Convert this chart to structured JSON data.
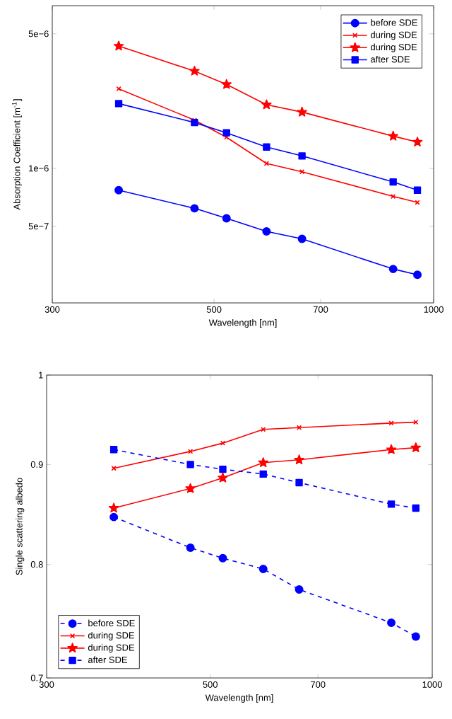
{
  "chart_data": [
    {
      "type": "line",
      "xlabel": "Wavelength [nm]",
      "ylabel": "Absorption Coefficient [m$^{-1}$]",
      "log": "xy",
      "legend": "top right",
      "x": [
        370,
        470,
        520,
        590,
        660,
        880,
        950
      ],
      "xlim": [
        300,
        1000
      ],
      "xticks": [
        300,
        500,
        700,
        1000
      ],
      "ylim": [
        2e-07,
        7e-06
      ],
      "yticks": [
        {
          "value": 5e-07,
          "label": "5e−7"
        },
        {
          "value": 1e-06,
          "label": "1e−6"
        },
        {
          "value": 5e-06,
          "label": "5e−6"
        }
      ],
      "series": [
        {
          "name": "before SDE",
          "color": "#0000ff",
          "marker": "circle",
          "line_style": "solid",
          "values": [
            7.7e-07,
            6.2e-07,
            5.5e-07,
            4.7e-07,
            4.3e-07,
            3e-07,
            2.8e-07
          ]
        },
        {
          "name": "during SDE",
          "color": "#ff0000",
          "marker": "cross",
          "line_style": "solid",
          "values": [
            2.59e-06,
            1.78e-06,
            1.45e-06,
            1.06e-06,
            9.6e-07,
            7.15e-07,
            6.65e-07
          ]
        },
        {
          "name": "during SDE",
          "color": "#ff0000",
          "marker": "star",
          "line_style": "solid",
          "values": [
            4.32e-06,
            3.2e-06,
            2.73e-06,
            2.14e-06,
            1.96e-06,
            1.47e-06,
            1.37e-06
          ]
        },
        {
          "name": "after SDE",
          "color": "#0000ff",
          "marker": "square",
          "line_style": "solid",
          "values": [
            2.17e-06,
            1.73e-06,
            1.53e-06,
            1.29e-06,
            1.16e-06,
            8.5e-07,
            7.7e-07
          ]
        }
      ]
    },
    {
      "type": "line",
      "xlabel": "Wavelength [nm]",
      "ylabel": "Single scattering albedo",
      "log": "xy",
      "legend": "bottom left",
      "x": [
        370,
        470,
        520,
        590,
        660,
        880,
        950
      ],
      "xlim": [
        300,
        1000
      ],
      "xticks": [
        300,
        500,
        700,
        1000
      ],
      "ylim": [
        0.7,
        1
      ],
      "yticks": [
        0.7,
        0.8,
        0.9,
        1
      ],
      "series": [
        {
          "name": "before SDE",
          "color": "#0000ff",
          "marker": "circle",
          "line_style": "dashed",
          "values": [
            0.846,
            0.816,
            0.806,
            0.796,
            0.777,
            0.747,
            0.735
          ]
        },
        {
          "name": "during SDE",
          "color": "#ff0000",
          "marker": "cross",
          "line_style": "solid",
          "values": [
            0.896,
            0.914,
            0.923,
            0.938,
            0.94,
            0.945,
            0.946
          ]
        },
        {
          "name": "during SDE",
          "color": "#ff0000",
          "marker": "star",
          "line_style": "solid",
          "values": [
            0.855,
            0.875,
            0.886,
            0.902,
            0.905,
            0.916,
            0.918
          ]
        },
        {
          "name": "after SDE",
          "color": "#0000ff",
          "marker": "square",
          "line_style": "dashed",
          "values": [
            0.916,
            0.9,
            0.895,
            0.89,
            0.881,
            0.859,
            0.855
          ]
        }
      ]
    }
  ]
}
